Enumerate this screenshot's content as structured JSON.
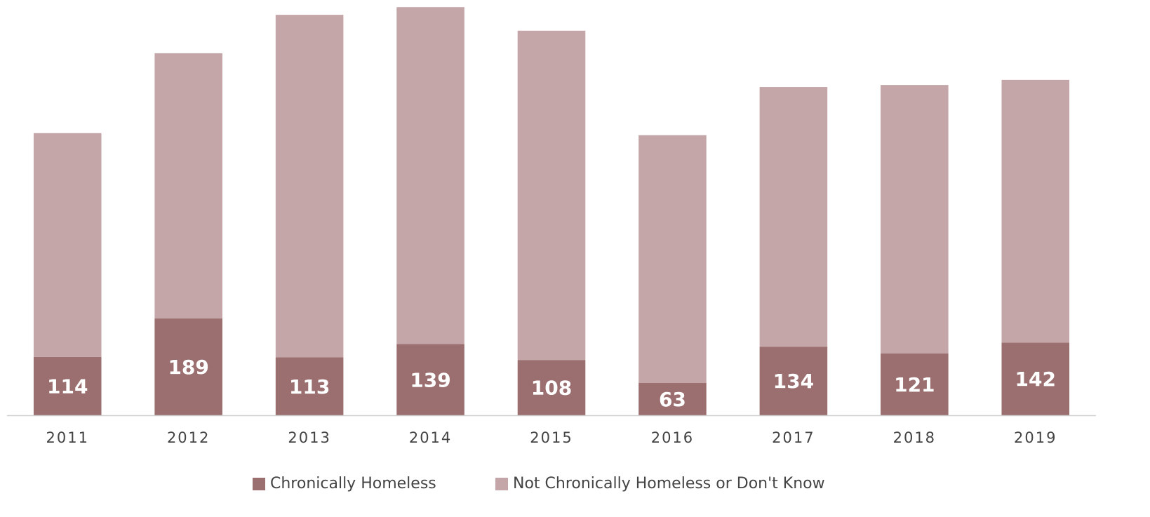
{
  "chart_data": {
    "type": "stacked_bar",
    "categories": [
      "2011",
      "2012",
      "2013",
      "2014",
      "2015",
      "2016",
      "2017",
      "2018",
      "2019"
    ],
    "series": [
      {
        "name": "Chronically Homeless",
        "color": "#9b6f70",
        "data_labels": true,
        "values": [
          114,
          189,
          113,
          139,
          108,
          63,
          134,
          121,
          142
        ]
      },
      {
        "name": "Not Chronically Homeless or Don't Know",
        "color": "#c4a6a8",
        "data_labels": false,
        "values": [
          437,
          518,
          669,
          658,
          643,
          484,
          507,
          524,
          513
        ]
      }
    ],
    "ylim": [
      0,
      800
    ]
  }
}
